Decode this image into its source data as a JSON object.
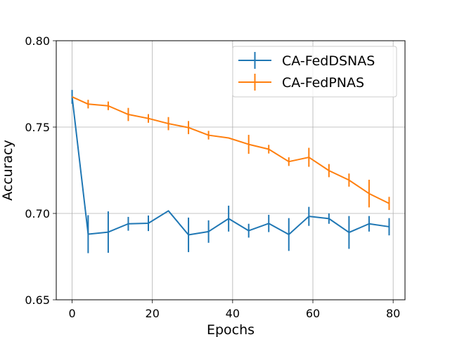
{
  "chart_data": {
    "type": "line",
    "title": "",
    "xlabel": "Epochs",
    "ylabel": "Accuracy",
    "xlim": [
      -3.95,
      82.95
    ],
    "ylim": [
      0.65,
      0.8
    ],
    "xticks": [
      0,
      20,
      40,
      60,
      80
    ],
    "yticks": [
      0.65,
      0.7,
      0.75,
      0.8
    ],
    "ytick_labels": [
      "0.65",
      "0.70",
      "0.75",
      "0.80"
    ],
    "grid": true,
    "legend_position": "top-right",
    "x": [
      0,
      4,
      9,
      14,
      19,
      24,
      29,
      34,
      39,
      44,
      49,
      54,
      59,
      64,
      69,
      74,
      79
    ],
    "series": [
      {
        "name": "CA-FedDSNAS",
        "color": "#1f77b4",
        "values": [
          0.7675,
          0.688,
          0.6892,
          0.694,
          0.6943,
          0.7015,
          0.6876,
          0.6895,
          0.697,
          0.69,
          0.6942,
          0.6878,
          0.6983,
          0.697,
          0.689,
          0.694,
          0.6923
        ],
        "errors": [
          0.004,
          0.011,
          0.012,
          0.004,
          0.0045,
          0.0,
          0.01,
          0.0065,
          0.0075,
          0.004,
          0.005,
          0.0095,
          0.0055,
          0.003,
          0.0095,
          0.0045,
          0.005
        ]
      },
      {
        "name": "CA-FedPNAS",
        "color": "#ff7f0e",
        "values": [
          0.7675,
          0.7633,
          0.7623,
          0.7573,
          0.755,
          0.752,
          0.7497,
          0.7453,
          0.7437,
          0.74,
          0.7372,
          0.73,
          0.7325,
          0.7248,
          0.7193,
          0.7115,
          0.7058
        ],
        "errors": [
          0.0,
          0.0025,
          0.0025,
          0.0038,
          0.0025,
          0.0038,
          0.0038,
          0.0025,
          0.0,
          0.0055,
          0.0025,
          0.0025,
          0.0055,
          0.0038,
          0.0038,
          0.008,
          0.0038
        ]
      }
    ]
  }
}
